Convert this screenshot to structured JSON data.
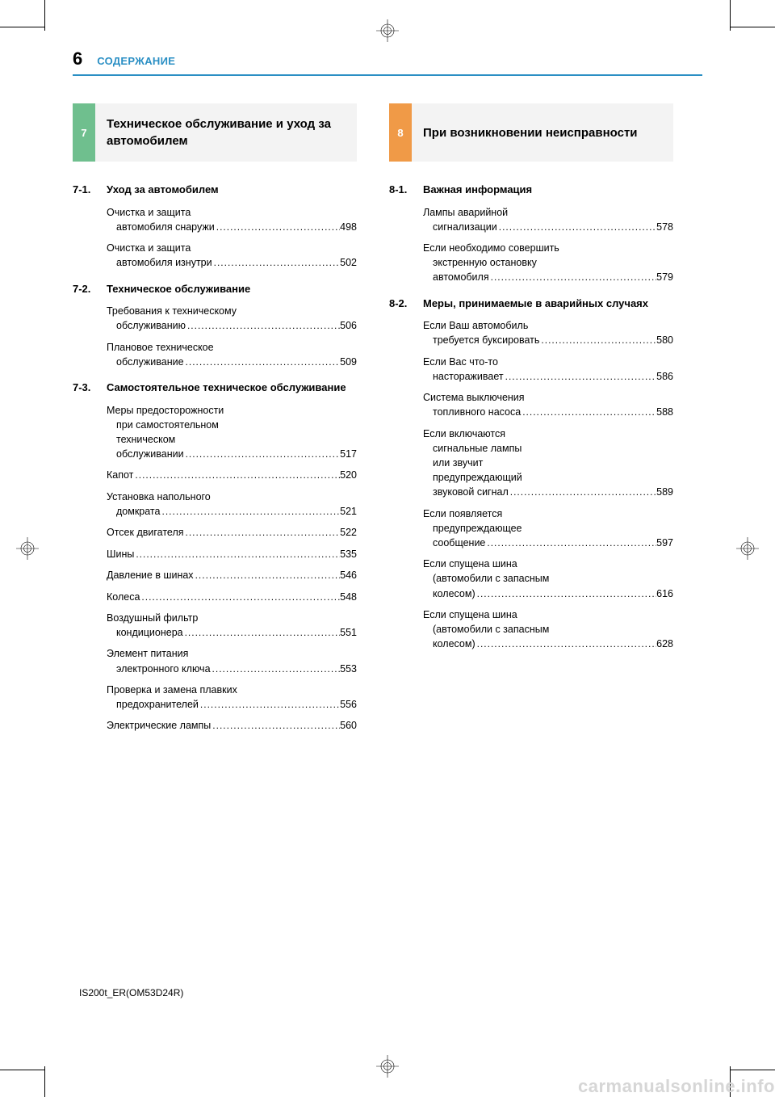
{
  "page": {
    "number": "6",
    "title": "СОДЕРЖАНИЕ",
    "doc_id": "IS200t_ER(OM53D24R)",
    "watermark": "carmanualsonline.info",
    "accent_color": "#2a8fc4"
  },
  "left_column": {
    "chapter": {
      "num": "7",
      "bg_color": "#6fbf8e",
      "title": "Техническое обслуживание и уход за автомобилем"
    },
    "sections": [
      {
        "num": "7-1.",
        "title": "Уход за автомобилем",
        "entries": [
          {
            "lines": [
              "Очистка и защита",
              "автомобиля снаружи"
            ],
            "page": "498"
          },
          {
            "lines": [
              "Очистка и защита",
              "автомобиля изнутри"
            ],
            "page": "502"
          }
        ]
      },
      {
        "num": "7-2.",
        "title": "Техническое обслуживание",
        "entries": [
          {
            "lines": [
              "Требования к техническому",
              "обслуживанию"
            ],
            "page": "506"
          },
          {
            "lines": [
              "Плановое техническое",
              "обслуживание"
            ],
            "page": "509"
          }
        ]
      },
      {
        "num": "7-3.",
        "title": "Самостоятельное техническое обслуживание",
        "entries": [
          {
            "lines": [
              "Меры предосторожности",
              "при самостоятельном",
              "техническом",
              "обслуживании"
            ],
            "page": "517"
          },
          {
            "lines": [
              "Капот"
            ],
            "page": "520"
          },
          {
            "lines": [
              "Установка напольного",
              "домкрата"
            ],
            "page": "521"
          },
          {
            "lines": [
              "Отсек двигателя"
            ],
            "page": "522"
          },
          {
            "lines": [
              "Шины"
            ],
            "page": "535"
          },
          {
            "lines": [
              "Давление в шинах"
            ],
            "page": "546"
          },
          {
            "lines": [
              "Колеса"
            ],
            "page": "548"
          },
          {
            "lines": [
              "Воздушный фильтр",
              "кондиционера"
            ],
            "page": "551"
          },
          {
            "lines": [
              "Элемент питания",
              "электронного ключа"
            ],
            "page": "553"
          },
          {
            "lines": [
              "Проверка и замена плавких",
              "предохранителей"
            ],
            "page": "556"
          },
          {
            "lines": [
              "Электрические лампы"
            ],
            "page": "560"
          }
        ]
      }
    ]
  },
  "right_column": {
    "chapter": {
      "num": "8",
      "bg_color": "#f09a47",
      "title": "При возникновении неисправности"
    },
    "sections": [
      {
        "num": "8-1.",
        "title": "Важная информация",
        "entries": [
          {
            "lines": [
              "Лампы аварийной",
              "сигнализации"
            ],
            "page": "578"
          },
          {
            "lines": [
              "Если необходимо совершить",
              "экстренную остановку",
              "автомобиля"
            ],
            "page": "579"
          }
        ]
      },
      {
        "num": "8-2.",
        "title": "Меры, принимаемые в аварийных случаях",
        "entries": [
          {
            "lines": [
              "Если Ваш автомобиль",
              "требуется буксировать"
            ],
            "page": "580"
          },
          {
            "lines": [
              "Если Вас что-то",
              "настораживает"
            ],
            "page": "586"
          },
          {
            "lines": [
              "Система выключения",
              "топливного насоса"
            ],
            "page": "588"
          },
          {
            "lines": [
              "Если включаются",
              "сигнальные лампы",
              "или звучит",
              "предупреждающий",
              "звуковой сигнал"
            ],
            "page": "589"
          },
          {
            "lines": [
              "Если появляется",
              "предупреждающее",
              "сообщение"
            ],
            "page": "597"
          },
          {
            "lines": [
              "Если спущена шина",
              "(автомобили с запасным",
              "колесом)"
            ],
            "page": "616"
          },
          {
            "lines": [
              "Если спущена шина",
              "(автомобили с запасным",
              "колесом)"
            ],
            "page": "628"
          }
        ]
      }
    ]
  }
}
